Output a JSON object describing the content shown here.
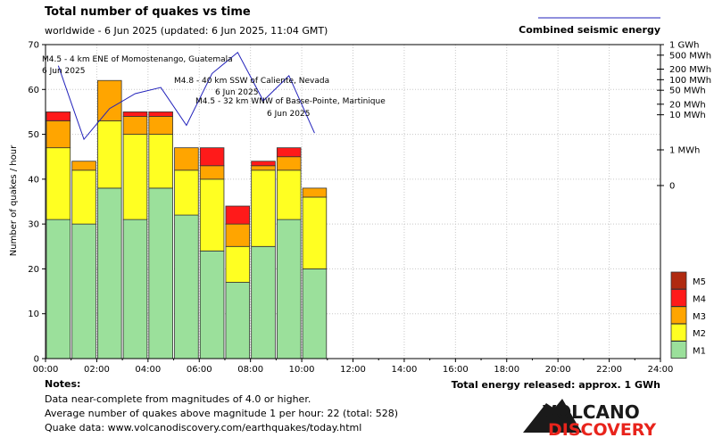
{
  "header": {
    "title": "Total number of quakes vs time",
    "subtitle": "worldwide -  6 Jun 2025 (updated: 6 Jun 2025, 11:04 GMT)",
    "energy_legend": "Combined seismic energy"
  },
  "chart_data": {
    "type": "bar",
    "stacked": true,
    "ylabel": "Number of quakes / hour",
    "ylim": [
      0,
      70
    ],
    "yticks": [
      "0",
      "10",
      "20",
      "30",
      "40",
      "50",
      "60",
      "70"
    ],
    "xticks": [
      "00:00",
      "02:00",
      "04:00",
      "06:00",
      "08:00",
      "10:00",
      "12:00",
      "14:00",
      "16:00",
      "18:00",
      "20:00",
      "22:00",
      "24:00"
    ],
    "hours": [
      0,
      1,
      2,
      3,
      4,
      5,
      6,
      7,
      8,
      9,
      10
    ],
    "series": [
      {
        "name": "M1",
        "color": "#9be09b",
        "values": [
          31,
          30,
          38,
          31,
          38,
          32,
          24,
          17,
          25,
          31,
          20
        ]
      },
      {
        "name": "M2",
        "color": "#ffff22",
        "values": [
          16,
          12,
          15,
          19,
          12,
          10,
          16,
          8,
          17,
          11,
          16
        ]
      },
      {
        "name": "M3",
        "color": "#ffa500",
        "values": [
          6,
          2,
          9,
          4,
          4,
          5,
          3,
          5,
          1,
          3,
          2
        ]
      },
      {
        "name": "M4",
        "color": "#ff1a1a",
        "values": [
          2,
          0,
          0,
          1,
          1,
          0,
          4,
          4,
          1,
          2,
          0
        ]
      },
      {
        "name": "M5",
        "color": "#b02a10",
        "values": [
          0,
          0,
          0,
          0,
          0,
          0,
          0,
          0,
          0,
          0,
          0
        ]
      }
    ],
    "legend_order": [
      "M5",
      "M4",
      "M3",
      "M2",
      "M1"
    ],
    "energy": {
      "name": "Combined seismic energy",
      "color": "#2222bb",
      "axis_labels": [
        "1 GWh",
        "500 MWh",
        "200 MWh",
        "100 MWh",
        "50 MWh",
        "20 MWh",
        "10 MWh",
        "1 MWh",
        "0"
      ],
      "hours": [
        0.5,
        1.5,
        2.5,
        3.5,
        4.5,
        5.5,
        6.5,
        7.5,
        8.5,
        9.5,
        10.5
      ],
      "values_mwh": [
        250,
        2,
        15,
        40,
        60,
        5,
        150,
        600,
        25,
        130,
        3
      ]
    },
    "annotations": [
      {
        "lines": [
          "M4.5 - 4 km ENE of Momostenango, Guatemala",
          "6 Jun 2025"
        ]
      },
      {
        "lines": [
          "M4.8 - 40 km SSW of Caliente, Nevada",
          "6 Jun 2025"
        ]
      },
      {
        "lines": [
          "M4.5 - 32 km WNW of Basse-Pointe, Martinique",
          "6 Jun 2025"
        ]
      }
    ]
  },
  "notes": {
    "heading": "Notes:",
    "lines": [
      "Data near-complete from magnitudes of 4.0 or higher.",
      "Average number of quakes above magnitude 1 per hour: 22 (total: 528)",
      "Quake data: www.volcanodiscovery.com/earthquakes/today.html"
    ],
    "total_energy": "Total energy released: approx. 1 GWh"
  },
  "logo": {
    "top": "VOLCANO",
    "bottom": "DISCOVERY"
  }
}
